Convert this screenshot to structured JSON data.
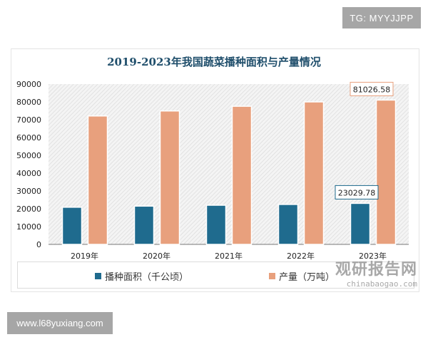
{
  "badge": "TG: MYYJJPP",
  "site": "www.l68yuxiang.com",
  "watermark": {
    "cn": "观研报告网",
    "en": "chinabaogao.com"
  },
  "chart_data": {
    "type": "bar",
    "title": "2019-2023年我国蔬菜播种面积与产量情况",
    "categories": [
      "2019年",
      "2020年",
      "2021年",
      "2022年",
      "2023年"
    ],
    "ylim": [
      0,
      90000
    ],
    "yticks": [
      "0",
      "10000",
      "20000",
      "30000",
      "40000",
      "50000",
      "60000",
      "70000",
      "80000",
      "90000"
    ],
    "legend_position": "bottom",
    "series": [
      {
        "name": "播种面积（千公顷）",
        "color": "#1f6b8e",
        "values": [
          20862.7,
          21485.5,
          21986,
          22434,
          23029.78
        ]
      },
      {
        "name": "产量（万吨）",
        "color": "#e8a07d",
        "values": [
          72102.6,
          74912.9,
          77548.8,
          79997.2,
          81026.58
        ]
      }
    ],
    "data_labels": [
      {
        "series": 0,
        "index": 4,
        "text": "23029.78"
      },
      {
        "series": 1,
        "index": 4,
        "text": "81026.58"
      }
    ]
  }
}
